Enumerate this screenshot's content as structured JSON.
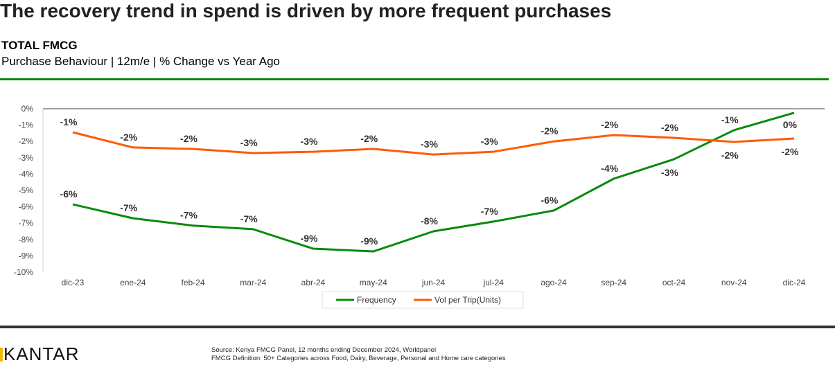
{
  "title": "The recovery trend in spend is driven by more frequent purchases",
  "subtitle_main": "TOTAL FMCG",
  "subtitle_detail": "Purchase Behaviour | 12m/e | % Change vs Year Ago",
  "footer": {
    "logo": "KANTAR",
    "source": "Source: Kenya FMCG Panel, 12 months ending December 2024, Worldpanel",
    "definition": "FMCG Definition: 50+ Categories across Food, Dairy, Beverage, Personal and Home care categories"
  },
  "chart_data": {
    "type": "line",
    "categories": [
      "dic-23",
      "ene-24",
      "feb-24",
      "mar-24",
      "abr-24",
      "may-24",
      "jun-24",
      "jul-24",
      "ago-24",
      "sep-24",
      "oct-24",
      "nov-24",
      "dic-24"
    ],
    "ylim": [
      -10,
      0
    ],
    "yticks": [
      "0%",
      "-1%",
      "-2%",
      "-3%",
      "-4%",
      "-5%",
      "-6%",
      "-7%",
      "-8%",
      "-9%",
      "-10%"
    ],
    "grid": false,
    "legend_position": "bottom",
    "series": [
      {
        "name": "Frequency",
        "color": "#0a8a0a",
        "values": [
          -5.85,
          -6.7,
          -7.15,
          -7.37,
          -8.56,
          -8.73,
          -7.5,
          -6.9,
          -6.23,
          -4.28,
          -3.09,
          -1.31,
          -0.25
        ],
        "labels": [
          "-6%",
          "-7%",
          "-7%",
          "-7%",
          "-9%",
          "-9%",
          "-8%",
          "-7%",
          "-6%",
          "-4%",
          "-3%",
          "-1%",
          "0%"
        ]
      },
      {
        "name": "Vol per Trip(Units)",
        "color": "#ff5a00",
        "values": [
          -1.44,
          -2.37,
          -2.46,
          -2.71,
          -2.63,
          -2.46,
          -2.8,
          -2.63,
          -2.0,
          -1.61,
          -1.78,
          -2.03,
          -1.82
        ],
        "labels": [
          "-1%",
          "-2%",
          "-2%",
          "-3%",
          "-3%",
          "-2%",
          "-3%",
          "-3%",
          "-2%",
          "-2%",
          "-2%",
          "-2%",
          "-2%"
        ]
      }
    ]
  }
}
